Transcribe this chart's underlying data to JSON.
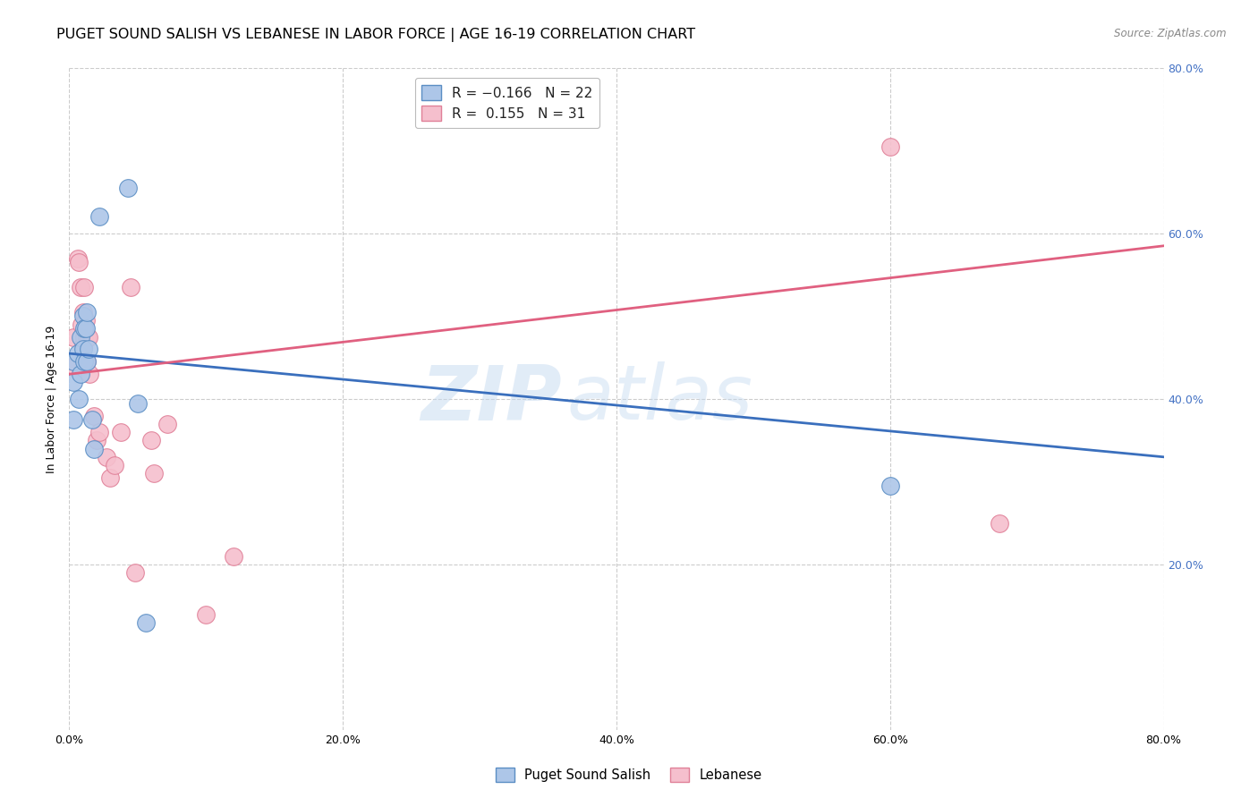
{
  "title": "PUGET SOUND SALISH VS LEBANESE IN LABOR FORCE | AGE 16-19 CORRELATION CHART",
  "source": "Source: ZipAtlas.com",
  "ylabel": "In Labor Force | Age 16-19",
  "xlim": [
    0.0,
    0.8
  ],
  "ylim": [
    0.0,
    0.8
  ],
  "xtick_vals": [
    0.0,
    0.2,
    0.4,
    0.6,
    0.8
  ],
  "ytick_vals": [
    0.2,
    0.4,
    0.6,
    0.8
  ],
  "watermark_zip": "ZIP",
  "watermark_atlas": "atlas",
  "blue_scatter_x": [
    0.003,
    0.003,
    0.003,
    0.006,
    0.007,
    0.008,
    0.008,
    0.01,
    0.01,
    0.011,
    0.011,
    0.012,
    0.013,
    0.013,
    0.014,
    0.017,
    0.018,
    0.022,
    0.05,
    0.056,
    0.6,
    0.043
  ],
  "blue_scatter_y": [
    0.445,
    0.42,
    0.375,
    0.455,
    0.4,
    0.475,
    0.43,
    0.5,
    0.46,
    0.485,
    0.445,
    0.485,
    0.445,
    0.505,
    0.46,
    0.375,
    0.34,
    0.62,
    0.395,
    0.13,
    0.295,
    0.655
  ],
  "pink_scatter_x": [
    0.003,
    0.004,
    0.006,
    0.007,
    0.008,
    0.009,
    0.01,
    0.01,
    0.011,
    0.011,
    0.012,
    0.013,
    0.013,
    0.014,
    0.015,
    0.018,
    0.02,
    0.022,
    0.027,
    0.03,
    0.033,
    0.038,
    0.045,
    0.048,
    0.06,
    0.062,
    0.072,
    0.1,
    0.12,
    0.6,
    0.68
  ],
  "pink_scatter_y": [
    0.475,
    0.44,
    0.57,
    0.565,
    0.535,
    0.49,
    0.465,
    0.505,
    0.475,
    0.535,
    0.495,
    0.475,
    0.445,
    0.475,
    0.43,
    0.38,
    0.35,
    0.36,
    0.33,
    0.305,
    0.32,
    0.36,
    0.535,
    0.19,
    0.35,
    0.31,
    0.37,
    0.14,
    0.21,
    0.705,
    0.25
  ],
  "blue_line_x": [
    0.0,
    0.8
  ],
  "blue_line_y": [
    0.455,
    0.33
  ],
  "pink_line_x": [
    0.0,
    0.8
  ],
  "pink_line_y": [
    0.43,
    0.585
  ],
  "blue_scatter_face": "#adc6e8",
  "blue_scatter_edge": "#5b8ec4",
  "pink_scatter_face": "#f5bfcd",
  "pink_scatter_edge": "#e08098",
  "blue_line_color": "#3a6fbd",
  "pink_line_color": "#e06080",
  "grid_color": "#cccccc",
  "bg_color": "#ffffff",
  "right_tick_color": "#4472c4",
  "title_fontsize": 11.5,
  "axis_label_fontsize": 9,
  "tick_fontsize": 9,
  "legend_fontsize": 11,
  "source_fontsize": 8.5
}
